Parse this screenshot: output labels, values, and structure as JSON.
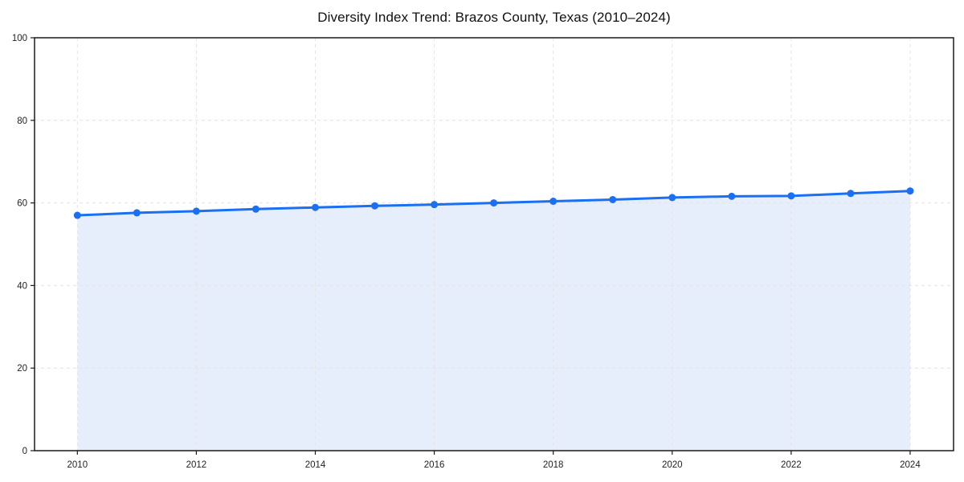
{
  "page": {
    "background": "#ffffff"
  },
  "chart_data": {
    "type": "line",
    "title": "Diversity Index Trend: Brazos County, Texas (2010–2024)",
    "x": [
      2010,
      2011,
      2012,
      2013,
      2014,
      2015,
      2016,
      2017,
      2018,
      2019,
      2020,
      2021,
      2022,
      2023,
      2024
    ],
    "series": [
      {
        "name": "Diversity Index",
        "values": [
          57.0,
          57.6,
          58.0,
          58.5,
          58.9,
          59.3,
          59.6,
          60.0,
          60.4,
          60.8,
          61.3,
          61.6,
          61.7,
          62.3,
          62.9
        ],
        "line_color": "#1a6ff2",
        "marker_color": "#1a6ff2",
        "area_fill_color": "#e6eefb",
        "line_width": 3,
        "marker_radius": 4.5,
        "marker": "circle",
        "area": true
      }
    ],
    "xlabel": "",
    "ylabel": "",
    "xlim": [
      2009.28,
      2024.73
    ],
    "ylim": [
      0,
      100
    ],
    "xticks": [
      2010,
      2012,
      2014,
      2016,
      2018,
      2020,
      2022,
      2024
    ],
    "yticks": [
      0,
      20,
      40,
      60,
      80,
      100
    ],
    "grid": true,
    "grid_style": "dashed",
    "legend": "none",
    "colors": {
      "grid": "#e4e4e4",
      "axis": "#1a1a1a",
      "tick_label": "#1f1f1f",
      "title": "#111111",
      "plot_background": "#ffffff"
    }
  }
}
